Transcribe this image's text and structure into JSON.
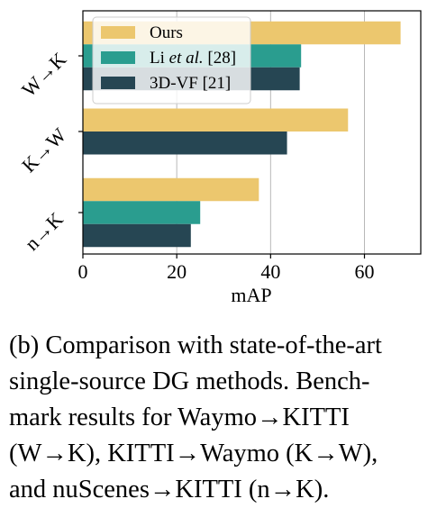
{
  "chart_data": {
    "type": "bar",
    "orientation": "horizontal",
    "categories": [
      "W→K",
      "K→W",
      "n→K"
    ],
    "series": [
      {
        "name": "Ours",
        "color": "#ecc76e",
        "values": [
          67.7,
          56.5,
          37.5
        ]
      },
      {
        "name": "Li et al. [28]",
        "color": "#2a9d8f",
        "values": [
          46.5,
          null,
          25.0
        ]
      },
      {
        "name": "3D-VF [21]",
        "color": "#264653",
        "values": [
          46.2,
          43.5,
          23.0
        ]
      }
    ],
    "xlabel": "mAP",
    "xlim": [
      0,
      72
    ],
    "xticks": [
      0,
      20,
      40,
      60
    ],
    "grid": "vertical",
    "legend_placement": "top-left"
  },
  "caption": {
    "lines": [
      "(b) Comparison with state-of-the-art",
      "single-source DG methods. Bench-",
      "mark results for Waymo→KITTI",
      "(W→K), KITTI→Waymo (K→W),",
      "and nuScenes→KITTI (n→K)."
    ]
  }
}
